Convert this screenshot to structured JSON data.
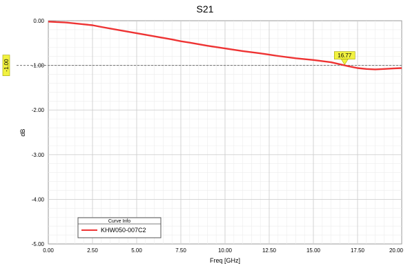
{
  "chart_data": {
    "type": "line",
    "title": "S21",
    "xlabel": "Freq [GHz]",
    "ylabel": "dB",
    "xlim": [
      0,
      20
    ],
    "ylim": [
      -5,
      0
    ],
    "x_ticks": [
      "0.00",
      "2.50",
      "5.00",
      "7.50",
      "10.00",
      "12.50",
      "15.00",
      "17.50",
      "20.00"
    ],
    "y_ticks": [
      "0.00",
      "-1.00",
      "-2.00",
      "-3.00",
      "-4.00",
      "-5.00"
    ],
    "grid": true,
    "legend_title": "Curve Info",
    "legend_position": "bottom-left",
    "series": [
      {
        "name": "KHW050-007C2",
        "color": "#ee3333",
        "x": [
          0,
          1,
          2,
          2.5,
          3,
          4,
          5,
          6,
          7,
          7.5,
          8,
          9,
          10,
          11,
          12,
          12.5,
          13,
          14,
          15,
          16,
          16.77,
          17,
          17.5,
          18,
          18.5,
          19,
          19.5,
          20
        ],
        "y": [
          -0.02,
          -0.04,
          -0.08,
          -0.1,
          -0.14,
          -0.21,
          -0.28,
          -0.35,
          -0.42,
          -0.46,
          -0.49,
          -0.56,
          -0.62,
          -0.68,
          -0.73,
          -0.76,
          -0.79,
          -0.84,
          -0.88,
          -0.93,
          -1.0,
          -1.02,
          -1.06,
          -1.08,
          -1.09,
          -1.08,
          -1.07,
          -1.06
        ]
      }
    ],
    "reference_line": {
      "value": -1.0,
      "label": "-1.00"
    },
    "marker": {
      "x": 16.77,
      "label": "16.77"
    }
  }
}
